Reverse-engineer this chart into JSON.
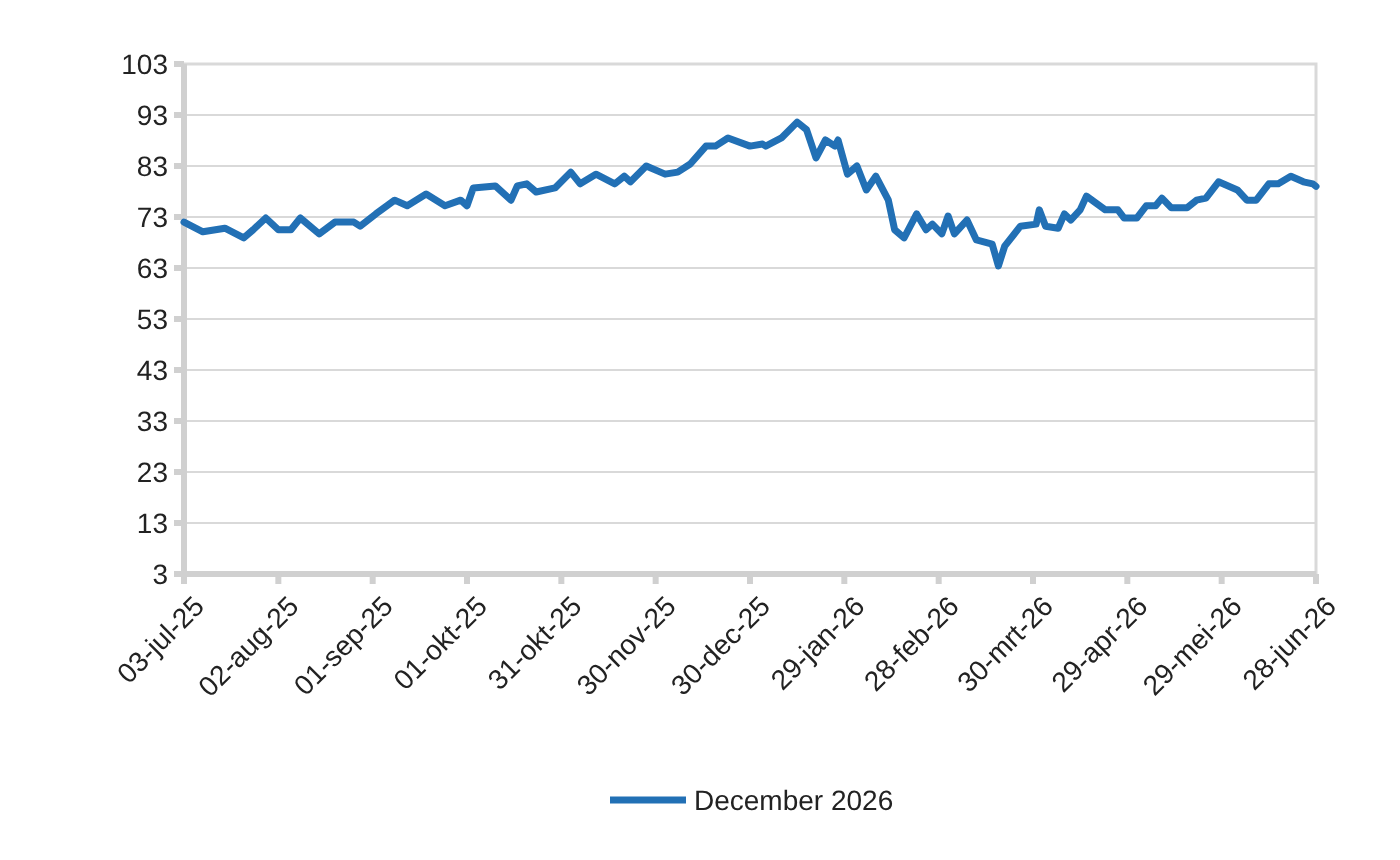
{
  "chart_data": {
    "type": "line",
    "legend": "bottom",
    "grid": "y",
    "ylim": [
      3,
      103
    ],
    "yticks": [
      3,
      13,
      23,
      33,
      43,
      53,
      63,
      73,
      83,
      93,
      103
    ],
    "xlim": [
      "2025-07-03",
      "2026-06-28"
    ],
    "xticks": [
      {
        "value": "2025-07-03",
        "label": "03-jul-25"
      },
      {
        "value": "2025-08-02",
        "label": "02-aug-25"
      },
      {
        "value": "2025-09-01",
        "label": "01-sep-25"
      },
      {
        "value": "2025-10-01",
        "label": "01-okt-25"
      },
      {
        "value": "2025-10-31",
        "label": "31-okt-25"
      },
      {
        "value": "2025-11-30",
        "label": "30-nov-25"
      },
      {
        "value": "2025-12-30",
        "label": "30-dec-25"
      },
      {
        "value": "2026-01-29",
        "label": "29-jan-26"
      },
      {
        "value": "2026-02-28",
        "label": "28-feb-26"
      },
      {
        "value": "2026-03-30",
        "label": "30-mrt-26"
      },
      {
        "value": "2026-04-29",
        "label": "29-apr-26"
      },
      {
        "value": "2026-05-29",
        "label": "29-mei-26"
      },
      {
        "value": "2026-06-28",
        "label": "28-jun-26"
      }
    ],
    "x": [
      "2025-07-03",
      "2025-07-09",
      "2025-07-16",
      "2025-07-22",
      "2025-07-25",
      "2025-07-29",
      "2025-08-02",
      "2025-08-06",
      "2025-08-09",
      "2025-08-15",
      "2025-08-20",
      "2025-08-26",
      "2025-08-28",
      "2025-09-02",
      "2025-09-08",
      "2025-09-12",
      "2025-09-18",
      "2025-09-24",
      "2025-09-29",
      "2025-10-01",
      "2025-10-03",
      "2025-10-10",
      "2025-10-15",
      "2025-10-17",
      "2025-10-20",
      "2025-10-23",
      "2025-10-29",
      "2025-11-03",
      "2025-11-06",
      "2025-11-11",
      "2025-11-17",
      "2025-11-20",
      "2025-11-22",
      "2025-11-27",
      "2025-12-03",
      "2025-12-07",
      "2025-12-11",
      "2025-12-16",
      "2025-12-19",
      "2025-12-23",
      "2025-12-30",
      "2026-01-03",
      "2026-01-04",
      "2026-01-09",
      "2026-01-14",
      "2026-01-17",
      "2026-01-20",
      "2026-01-23",
      "2026-01-26",
      "2026-01-27",
      "2026-01-30",
      "2026-02-02",
      "2026-02-05",
      "2026-02-08",
      "2026-02-12",
      "2026-02-14",
      "2026-02-17",
      "2026-02-21",
      "2026-02-24",
      "2026-02-26",
      "2026-03-01",
      "2026-03-03",
      "2026-03-05",
      "2026-03-09",
      "2026-03-12",
      "2026-03-17",
      "2026-03-19",
      "2026-03-21",
      "2026-03-26",
      "2026-03-31",
      "2026-04-01",
      "2026-04-03",
      "2026-04-07",
      "2026-04-09",
      "2026-04-11",
      "2026-04-14",
      "2026-04-16",
      "2026-04-22",
      "2026-04-26",
      "2026-04-28",
      "2026-05-02",
      "2026-05-05",
      "2026-05-08",
      "2026-05-10",
      "2026-05-13",
      "2026-05-18",
      "2026-05-21",
      "2026-05-24",
      "2026-05-28",
      "2026-06-03",
      "2026-06-06",
      "2026-06-09",
      "2026-06-13",
      "2026-06-16",
      "2026-06-20",
      "2026-06-24",
      "2026-06-27",
      "2026-06-28"
    ],
    "series": [
      {
        "name": "December 2026",
        "color": "#2270b5",
        "values": [
          72.0,
          70.1,
          70.8,
          68.9,
          70.5,
          72.8,
          70.5,
          70.5,
          72.8,
          69.7,
          72.0,
          72.0,
          71.2,
          73.6,
          76.3,
          75.2,
          77.5,
          75.2,
          76.3,
          75.2,
          78.7,
          79.1,
          76.3,
          79.1,
          79.5,
          77.9,
          78.7,
          81.8,
          79.5,
          81.4,
          79.5,
          81.0,
          79.9,
          83.0,
          81.4,
          81.8,
          83.4,
          86.9,
          86.9,
          88.5,
          86.9,
          87.3,
          86.9,
          88.5,
          91.6,
          90.1,
          84.6,
          88.1,
          86.9,
          88.1,
          81.4,
          83.0,
          78.3,
          81.0,
          76.3,
          70.5,
          68.9,
          73.6,
          70.5,
          71.6,
          69.7,
          73.2,
          69.7,
          72.4,
          68.5,
          67.7,
          63.4,
          67.3,
          71.2,
          71.6,
          74.4,
          71.2,
          70.8,
          73.6,
          72.4,
          74.4,
          77.1,
          74.4,
          74.4,
          72.8,
          72.8,
          75.2,
          75.2,
          76.7,
          74.8,
          74.8,
          76.3,
          76.7,
          79.9,
          78.3,
          76.3,
          76.3,
          79.5,
          79.5,
          81.0,
          79.9,
          79.5,
          79.0
        ]
      }
    ]
  }
}
